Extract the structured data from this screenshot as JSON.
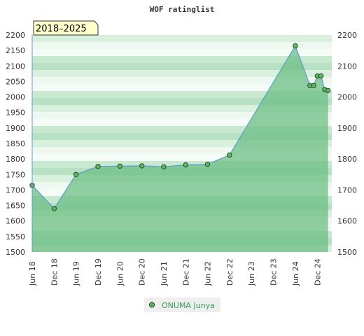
{
  "chart_data": {
    "type": "area",
    "title": "WOF ratinglist",
    "badge": "2018–2025",
    "x": [
      "2018-06",
      "2018-12",
      "2019-06",
      "2019-12",
      "2020-06",
      "2020-12",
      "2021-06",
      "2021-12",
      "2022-06",
      "2022-12",
      "2024-06",
      "2024-10",
      "2024-11",
      "2024-12",
      "2025-01",
      "2025-02",
      "2025-03"
    ],
    "series": [
      {
        "name": "ONUMA Junya",
        "values": [
          1715,
          1640,
          1750,
          1776,
          1777,
          1778,
          1775,
          1781,
          1783,
          1813,
          2165,
          2037,
          2037,
          2068,
          2068,
          2024,
          2021
        ]
      }
    ],
    "xticks": [
      "Jun 18",
      "Dec 18",
      "Jun 19",
      "Dec 19",
      "Jun 20",
      "Dec 20",
      "Jun 21",
      "Dec 21",
      "Jun 22",
      "Dec 22",
      "Jun 23",
      "Dec 23",
      "Jun 24",
      "Dec 24"
    ],
    "ylim": [
      1500,
      2200
    ],
    "yticks": [
      1500,
      1550,
      1600,
      1650,
      1700,
      1750,
      1800,
      1850,
      1900,
      1950,
      2000,
      2050,
      2100,
      2150,
      2200
    ],
    "yticks_right": [
      1500,
      1600,
      1700,
      1800,
      1900,
      2000,
      2100,
      2200
    ],
    "grid": "horizontal bands",
    "legend": "bottom-center",
    "colors": {
      "line": "#5b9bd5",
      "fill": "#6cbf84",
      "marker": "#5cb85c",
      "band_dark": "#b8e0c2",
      "band_light": "#eef8f0",
      "badge_bg": "#ffffcc"
    }
  }
}
